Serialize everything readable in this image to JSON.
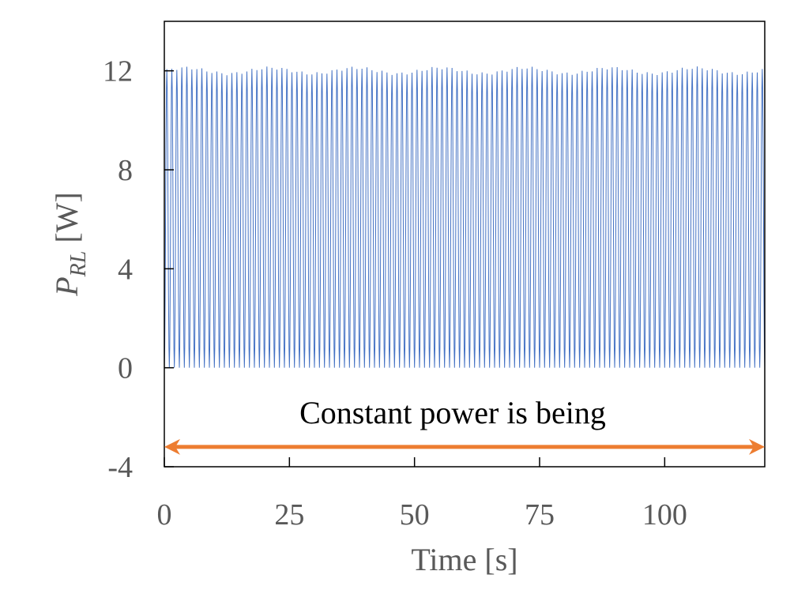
{
  "chart_data": {
    "type": "line",
    "title": "",
    "xlabel": "Time [s]",
    "ylabel": {
      "main": "P",
      "subscript": "RL",
      "unit": " [W]"
    },
    "xlim": [
      0,
      120
    ],
    "ylim": [
      -4,
      14
    ],
    "x_ticks": [
      0,
      25,
      50,
      75,
      100
    ],
    "x_tick_labels": [
      "0",
      "25",
      "50",
      "75",
      "100"
    ],
    "y_ticks": [
      -4,
      0,
      4,
      8,
      12
    ],
    "y_tick_labels": [
      "-4",
      "0",
      "4",
      "8",
      "12"
    ],
    "grid": false,
    "series": [
      {
        "name": "P_RL",
        "color": "#4472C4",
        "signal": "periodic oscillation between approximately 0 W and 12 W",
        "min": 0,
        "max": 12,
        "period_s": 1.0,
        "x_start": 0,
        "x_end": 120
      }
    ],
    "annotations": [
      {
        "text": "Constant power is being",
        "arrow_from_x": 0,
        "arrow_to_x": 120,
        "arrow_y": -3.2,
        "arrow_color": "#ED7D31",
        "arrow_style": "double-headed"
      }
    ]
  }
}
